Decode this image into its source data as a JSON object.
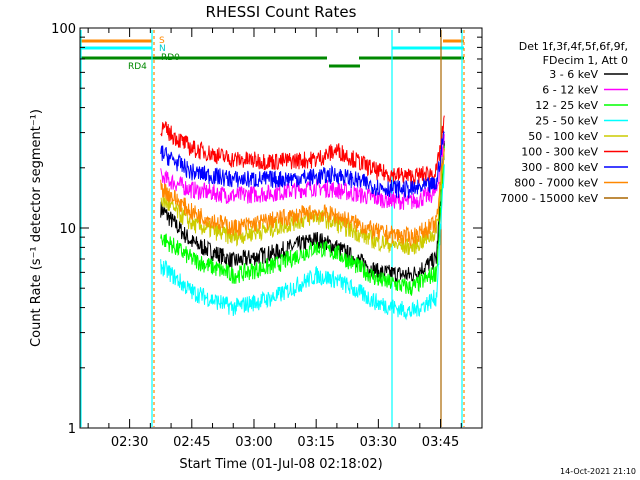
{
  "chart_data": {
    "type": "line",
    "title": "RHESSI Count Rates",
    "xlabel": "Start Time (01-Jul-08 02:18:02)",
    "ylabel": "Count Rate (s⁻¹ detector segment⁻¹)",
    "yscale": "log",
    "ylim": [
      1,
      100
    ],
    "xlim": [
      "02:18:02",
      "03:55:00"
    ],
    "x_ticks": [
      "02:30",
      "02:45",
      "03:00",
      "03:15",
      "03:30",
      "03:45"
    ],
    "y_ticks": [
      "1",
      "10",
      "100"
    ],
    "grid": false,
    "legend_position": "right",
    "legend_header": [
      "Det 1f,3f,4f,5f,6f,9f,",
      "FDecim 1, Att 0"
    ],
    "series": [
      {
        "name": "3 - 6 keV",
        "color": "#000000",
        "x": [
          "02:37:30",
          "02:45",
          "02:55",
          "03:05",
          "03:15",
          "03:20",
          "03:30",
          "03:38",
          "03:44",
          "03:46"
        ],
        "values": [
          12.5,
          8.5,
          6.8,
          7.5,
          8.8,
          8.0,
          6.0,
          5.8,
          7.0,
          28.0
        ]
      },
      {
        "name": "6 - 12 keV",
        "color": "#ff00ff",
        "x": [
          "02:37:30",
          "02:45",
          "02:55",
          "03:05",
          "03:15",
          "03:20",
          "03:30",
          "03:38",
          "03:44",
          "03:46"
        ],
        "values": [
          18.0,
          15.5,
          14.5,
          15.0,
          16.0,
          15.5,
          14.0,
          13.5,
          15.0,
          30.0
        ]
      },
      {
        "name": "12 - 25 keV",
        "color": "#00ff00",
        "x": [
          "02:37:30",
          "02:45",
          "02:55",
          "03:05",
          "03:15",
          "03:20",
          "03:30",
          "03:38",
          "03:44",
          "03:46"
        ],
        "values": [
          9.0,
          7.0,
          5.8,
          6.5,
          8.0,
          7.5,
          5.5,
          5.0,
          6.0,
          25.0
        ]
      },
      {
        "name": "25 - 50 keV",
        "color": "#00ffff",
        "x": [
          "02:37:30",
          "02:45",
          "02:55",
          "03:05",
          "03:15",
          "03:20",
          "03:30",
          "03:38",
          "03:44",
          "03:46"
        ],
        "values": [
          6.5,
          4.8,
          4.0,
          4.5,
          5.8,
          5.5,
          4.2,
          3.8,
          4.5,
          22.0
        ]
      },
      {
        "name": "50 - 100 keV",
        "color": "#cccc00",
        "x": [
          "02:37:30",
          "02:45",
          "02:55",
          "03:05",
          "03:15",
          "03:20",
          "03:30",
          "03:38",
          "03:44",
          "03:46"
        ],
        "values": [
          14.0,
          10.5,
          9.0,
          10.0,
          11.5,
          10.5,
          8.5,
          8.0,
          9.5,
          26.0
        ]
      },
      {
        "name": "100 - 300 keV",
        "color": "#ff0000",
        "x": [
          "02:37:30",
          "02:45",
          "02:55",
          "03:05",
          "03:15",
          "03:20",
          "03:30",
          "03:38",
          "03:44",
          "03:46"
        ],
        "values": [
          32.0,
          25.0,
          22.0,
          21.5,
          22.0,
          24.5,
          19.0,
          18.0,
          19.0,
          35.0
        ]
      },
      {
        "name": "300 - 800 keV",
        "color": "#0000ff",
        "x": [
          "02:37:30",
          "02:45",
          "02:55",
          "03:05",
          "03:15",
          "03:20",
          "03:30",
          "03:38",
          "03:44",
          "03:46"
        ],
        "values": [
          24.0,
          19.0,
          17.5,
          17.5,
          18.0,
          18.5,
          16.0,
          15.5,
          16.5,
          32.0
        ]
      },
      {
        "name": "800 - 7000 keV",
        "color": "#ff8800",
        "x": [
          "02:37:30",
          "02:45",
          "02:55",
          "03:05",
          "03:15",
          "03:20",
          "03:30",
          "03:38",
          "03:44",
          "03:46"
        ],
        "values": [
          16.0,
          12.0,
          10.0,
          11.0,
          12.0,
          11.5,
          9.5,
          9.0,
          10.5,
          27.0
        ]
      },
      {
        "name": "7000 - 15000 keV",
        "color": "#aa6600",
        "x": [],
        "values": []
      }
    ],
    "status_markers": [
      {
        "label": "S",
        "color": "#ff8800"
      },
      {
        "label": "N",
        "color": "#00ffff"
      },
      {
        "label": "RD0",
        "color": "#008800"
      },
      {
        "label": "RD4",
        "color": "#008800"
      }
    ],
    "timestamp": "14-Oct-2021 21:10"
  }
}
